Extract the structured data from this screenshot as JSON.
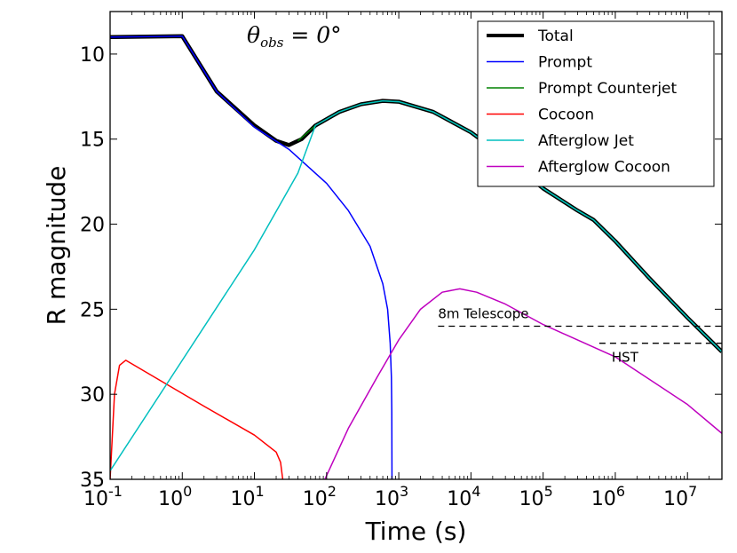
{
  "chart_data": {
    "type": "line",
    "xlabel": "Time (s)",
    "ylabel": "R magnitude",
    "x_scale": "log",
    "xlim": [
      0.1,
      30000000
    ],
    "ylim": [
      35,
      7.5
    ],
    "y_inverted": true,
    "grid": false,
    "legend_position": "top-right",
    "x_ticks": [
      {
        "base": "10",
        "exp": "-1"
      },
      {
        "base": "10",
        "exp": "0"
      },
      {
        "base": "10",
        "exp": "1"
      },
      {
        "base": "10",
        "exp": "2"
      },
      {
        "base": "10",
        "exp": "3"
      },
      {
        "base": "10",
        "exp": "4"
      },
      {
        "base": "10",
        "exp": "5"
      },
      {
        "base": "10",
        "exp": "6"
      },
      {
        "base": "10",
        "exp": "7"
      }
    ],
    "y_ticks": [
      "10",
      "15",
      "20",
      "25",
      "30",
      "35"
    ],
    "annotation": {
      "theta": "θ",
      "sub": "obs",
      "rest": " = 0°"
    },
    "series": [
      {
        "name": "Total",
        "color": "#000000",
        "width": 4.5,
        "points": [
          [
            0.1,
            9.0
          ],
          [
            1.0,
            8.95
          ],
          [
            3,
            12.2
          ],
          [
            10,
            14.2
          ],
          [
            20,
            15.1
          ],
          [
            30,
            15.35
          ],
          [
            45,
            15.0
          ],
          [
            70,
            14.2
          ],
          [
            150,
            13.4
          ],
          [
            300,
            12.95
          ],
          [
            600,
            12.75
          ],
          [
            1000,
            12.8
          ],
          [
            3000,
            13.4
          ],
          [
            10000,
            14.6
          ],
          [
            30000,
            16.1
          ],
          [
            100000,
            17.9
          ],
          [
            300000,
            19.2
          ],
          [
            500000,
            19.75
          ],
          [
            1000000,
            21.0
          ],
          [
            3000000,
            23.2
          ],
          [
            10000000,
            25.5
          ],
          [
            30000000,
            27.5
          ]
        ]
      },
      {
        "name": "Prompt",
        "color": "#0000ff",
        "width": 1.5,
        "points": [
          [
            0.1,
            9.0
          ],
          [
            1.0,
            8.95
          ],
          [
            3,
            12.2
          ],
          [
            10,
            14.3
          ],
          [
            30,
            15.6
          ],
          [
            100,
            17.6
          ],
          [
            200,
            19.2
          ],
          [
            400,
            21.3
          ],
          [
            600,
            23.5
          ],
          [
            700,
            25.0
          ],
          [
            760,
            27.0
          ],
          [
            790,
            29.0
          ],
          [
            800,
            31.0
          ],
          [
            805,
            35.2
          ]
        ]
      },
      {
        "name": "Prompt Counterjet",
        "color": "#008000",
        "width": 1.5,
        "points": [
          [
            40,
            15.1
          ],
          [
            70,
            14.2
          ],
          [
            150,
            13.4
          ],
          [
            300,
            12.95
          ],
          [
            600,
            12.75
          ],
          [
            1000,
            12.8
          ],
          [
            3000,
            13.4
          ],
          [
            10000,
            14.6
          ],
          [
            30000,
            16.1
          ],
          [
            100000,
            17.9
          ],
          [
            300000,
            19.2
          ],
          [
            500000,
            19.75
          ],
          [
            1000000,
            21.0
          ],
          [
            3000000,
            23.2
          ],
          [
            10000000,
            25.5
          ],
          [
            30000000,
            27.5
          ]
        ]
      },
      {
        "name": "Cocoon",
        "color": "#ff0000",
        "width": 1.5,
        "points": [
          [
            0.1,
            35.0
          ],
          [
            0.115,
            30.0
          ],
          [
            0.135,
            28.3
          ],
          [
            0.165,
            28.0
          ],
          [
            0.5,
            29.2
          ],
          [
            2,
            30.7
          ],
          [
            10,
            32.4
          ],
          [
            20,
            33.4
          ],
          [
            23,
            34.0
          ],
          [
            25,
            35.2
          ]
        ]
      },
      {
        "name": "Afterglow Jet",
        "color": "#00bfbf",
        "width": 1.5,
        "points": [
          [
            0.1,
            34.5
          ],
          [
            1,
            28.0
          ],
          [
            10,
            21.5
          ],
          [
            40,
            17.0
          ],
          [
            70,
            14.2
          ],
          [
            150,
            13.4
          ],
          [
            300,
            12.95
          ],
          [
            600,
            12.75
          ],
          [
            1000,
            12.8
          ],
          [
            3000,
            13.4
          ],
          [
            10000,
            14.6
          ],
          [
            30000,
            16.1
          ],
          [
            100000,
            17.9
          ],
          [
            300000,
            19.2
          ],
          [
            500000,
            19.75
          ],
          [
            1000000,
            21.0
          ],
          [
            3000000,
            23.2
          ],
          [
            10000000,
            25.5
          ],
          [
            30000000,
            27.5
          ]
        ]
      },
      {
        "name": "Afterglow Cocoon",
        "color": "#bf00bf",
        "width": 1.5,
        "points": [
          [
            90,
            35.2
          ],
          [
            200,
            32.0
          ],
          [
            500,
            29.0
          ],
          [
            1000,
            26.8
          ],
          [
            2000,
            25.0
          ],
          [
            4000,
            24.0
          ],
          [
            7000,
            23.8
          ],
          [
            12000,
            24.0
          ],
          [
            30000,
            24.7
          ],
          [
            100000,
            25.9
          ],
          [
            1000000,
            27.8
          ],
          [
            10000000,
            30.6
          ],
          [
            30000000,
            32.3
          ]
        ]
      }
    ],
    "reference_lines": [
      {
        "label": "8m Telescope",
        "y": 26.0,
        "x_start": 3500,
        "x_end": 30000000
      },
      {
        "label": "HST",
        "y": 27.0,
        "x_start": 600000,
        "x_end": 30000000
      }
    ]
  }
}
